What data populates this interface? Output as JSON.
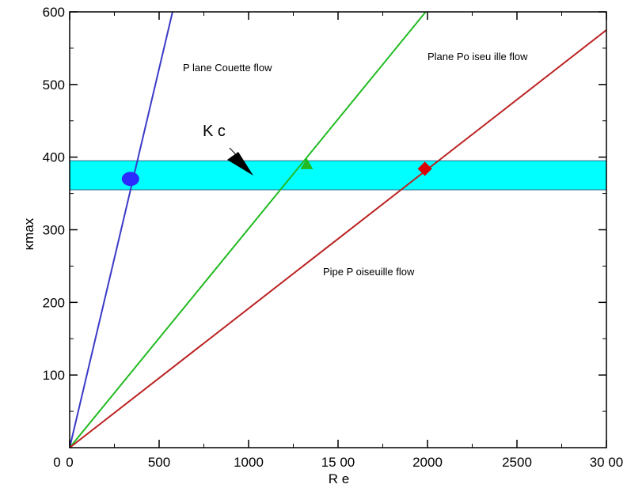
{
  "chart_data": {
    "type": "line",
    "xlabel": "R e",
    "ylabel": "κmax",
    "xlim": [
      0,
      3000
    ],
    "ylim": [
      0,
      600
    ],
    "x_ticks": [
      {
        "value": 0,
        "label": "0"
      },
      {
        "value": 500,
        "label": "500"
      },
      {
        "value": 1000,
        "label": "1000"
      },
      {
        "value": 1500,
        "label": "15 00"
      },
      {
        "value": 2000,
        "label": "2000"
      },
      {
        "value": 2500,
        "label": "2500"
      },
      {
        "value": 3000,
        "label": "30 00"
      }
    ],
    "y_ticks": [
      {
        "value": 100,
        "label": "100"
      },
      {
        "value": 200,
        "label": "200"
      },
      {
        "value": 300,
        "label": "300"
      },
      {
        "value": 400,
        "label": "400"
      },
      {
        "value": 500,
        "label": "500"
      },
      {
        "value": 600,
        "label": "600"
      }
    ],
    "origin_label": "0",
    "band": {
      "y_low": 355,
      "y_high": 395,
      "color": "#00ffff"
    },
    "band_label": "K c",
    "series": [
      {
        "name": "P lane Couette flow",
        "color": "#3a3ac8",
        "points": [
          [
            0,
            0
          ],
          [
            575,
            600
          ]
        ],
        "marker": {
          "shape": "circle",
          "x": 340,
          "y": 370,
          "color": "#2b2bff"
        }
      },
      {
        "name": "Plane Po iseu ille flow",
        "color": "#22bb22",
        "points": [
          [
            0,
            0
          ],
          [
            1990,
            600
          ]
        ],
        "marker": {
          "shape": "triangle",
          "x": 1325,
          "y": 390,
          "color": "#22bb22"
        }
      },
      {
        "name": "Pipe P oiseuille flow",
        "color": "#bb2222",
        "points": [
          [
            0,
            0
          ],
          [
            3000,
            575
          ]
        ],
        "marker": {
          "shape": "diamond",
          "x": 1985,
          "y": 384,
          "color": "#dd0000"
        }
      }
    ]
  }
}
